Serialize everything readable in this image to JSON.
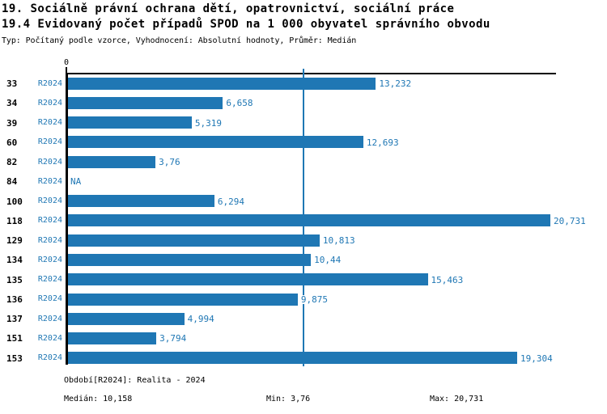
{
  "title": {
    "line1": "19. Sociálně právní ochrana dětí, opatrovnictví, sociální práce",
    "line2": "19.4 Evidovaný počet případů SPOD na 1 000 obyvatel správního obvodu",
    "line3": "Typ: Počítaný podle vzorce, Vyhodnocení: Absolutní hodnoty, Průměr: Medián"
  },
  "chart_data": {
    "type": "bar",
    "orientation": "horizontal",
    "categories": [
      "33",
      "34",
      "39",
      "60",
      "82",
      "84",
      "100",
      "118",
      "129",
      "134",
      "135",
      "136",
      "137",
      "151",
      "153"
    ],
    "series_label": "R2024",
    "values": [
      13.232,
      6.658,
      5.319,
      12.693,
      3.76,
      null,
      6.294,
      20.731,
      10.813,
      10.44,
      15.463,
      9.875,
      4.994,
      3.794,
      19.304
    ],
    "value_labels": [
      "13,232",
      "6,658",
      "5,319",
      "12,693",
      "3,76",
      "NA",
      "6,294",
      "20,731",
      "10,813",
      "10,44",
      "15,463",
      "9,875",
      "4,994",
      "3,794",
      "19,304"
    ],
    "axis_zero_label": "0",
    "xlim": [
      0,
      20.731
    ],
    "median": 10.158,
    "grid": "single-median-line",
    "legend": "none",
    "bar_color": "#1f77b4",
    "median_line_color": "#1f77b4",
    "label_color": "#1f77b4"
  },
  "footer": {
    "period": "Období[R2024]: Realita - 2024",
    "median": "Medián: 10,158",
    "min": "Min: 3,76",
    "max": "Max: 20,731"
  },
  "colors": {
    "accent_blue": "#1f77b4",
    "axis_black": "#000000",
    "background": "#ffffff"
  }
}
